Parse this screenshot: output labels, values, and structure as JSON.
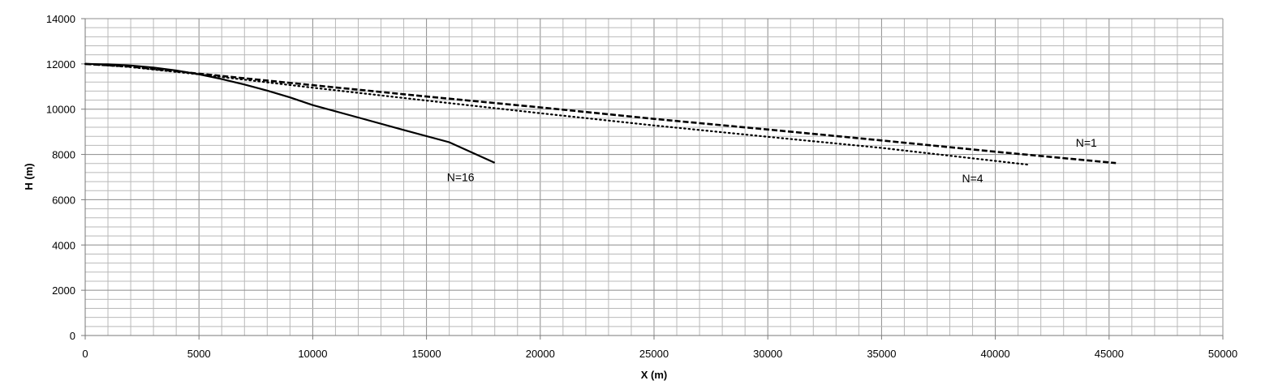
{
  "chart_data": {
    "type": "line",
    "title": "",
    "xlabel": "X (m)",
    "ylabel": "H (m)",
    "xlim": [
      0,
      50000
    ],
    "ylim": [
      0,
      14000
    ],
    "x_ticks": [
      "0",
      "5000",
      "10000",
      "15000",
      "20000",
      "25000",
      "30000",
      "35000",
      "40000",
      "45000",
      "50000"
    ],
    "y_ticks": [
      "0",
      "2000",
      "4000",
      "6000",
      "8000",
      "10000",
      "12000",
      "14000"
    ],
    "grid": true,
    "minor_grid": {
      "x_step": 1000,
      "y_step": 400
    },
    "legend": "none",
    "series": [
      {
        "name": "N=16",
        "style": "solid",
        "label_at": [
          16500,
          7000
        ],
        "points": [
          [
            0,
            12000
          ],
          [
            1000,
            11980
          ],
          [
            2000,
            11930
          ],
          [
            3000,
            11840
          ],
          [
            4000,
            11710
          ],
          [
            5000,
            11540
          ],
          [
            6000,
            11330
          ],
          [
            7000,
            11090
          ],
          [
            8000,
            10820
          ],
          [
            9000,
            10520
          ],
          [
            10000,
            10180
          ],
          [
            12000,
            9630
          ],
          [
            14000,
            9080
          ],
          [
            16000,
            8540
          ],
          [
            18000,
            7630
          ]
        ]
      },
      {
        "name": "N=4",
        "style": "dotted",
        "label_at": [
          39000,
          6950
        ],
        "points": [
          [
            0,
            12000
          ],
          [
            2000,
            11860
          ],
          [
            5000,
            11540
          ],
          [
            10000,
            10950
          ],
          [
            15000,
            10380
          ],
          [
            20000,
            9820
          ],
          [
            25000,
            9280
          ],
          [
            30000,
            8780
          ],
          [
            35000,
            8290
          ],
          [
            41500,
            7540
          ]
        ]
      },
      {
        "name": "N=1",
        "style": "dashed",
        "label_at": [
          44000,
          8530
        ],
        "points": [
          [
            0,
            12000
          ],
          [
            2000,
            11880
          ],
          [
            5000,
            11570
          ],
          [
            10000,
            11060
          ],
          [
            15000,
            10560
          ],
          [
            20000,
            10080
          ],
          [
            25000,
            9570
          ],
          [
            30000,
            9100
          ],
          [
            35000,
            8620
          ],
          [
            40000,
            8120
          ],
          [
            45300,
            7620
          ]
        ]
      }
    ]
  }
}
